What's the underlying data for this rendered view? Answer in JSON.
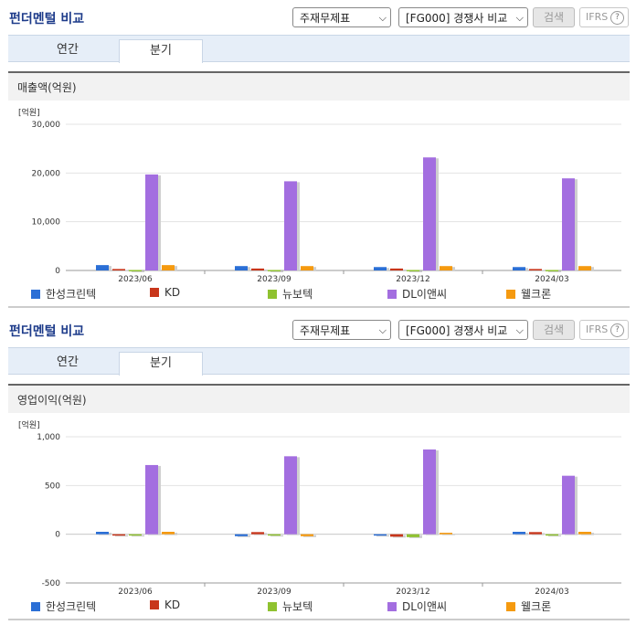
{
  "panels": [
    {
      "title": "펀더멘털 비교",
      "select_statement": "주재무제표",
      "select_compare": "[FG000] 경쟁사 비교",
      "search_label": "검색",
      "ifrs_label": "IFRS",
      "help_glyph": "?",
      "tabs": [
        "연간",
        "분기"
      ],
      "active_tab": 1,
      "metric_title": "매출액(억원)"
    },
    {
      "title": "펀더멘털 비교",
      "select_statement": "주재무제표",
      "select_compare": "[FG000] 경쟁사 비교",
      "search_label": "검색",
      "ifrs_label": "IFRS",
      "help_glyph": "?",
      "tabs": [
        "연간",
        "분기"
      ],
      "active_tab": 1,
      "metric_title": "영업이익(억원)"
    }
  ],
  "colors": {
    "한성크린텍": "#2b6fd6",
    "KD": "#c8361b",
    "뉴보텍": "#8fc230",
    "DL이앤씨": "#a36ee0",
    "웰크론": "#f59a10"
  },
  "chart_data": [
    {
      "type": "bar",
      "unit_label": "[억원]",
      "categories": [
        "2023/06",
        "2023/09",
        "2023/12",
        "2024/03"
      ],
      "ylim": [
        0,
        30000
      ],
      "yticks": [
        0,
        10000,
        20000,
        30000
      ],
      "ytick_labels": [
        "0",
        "10,000",
        "20,000",
        "30,000"
      ],
      "grid": true,
      "legend": "bottom",
      "series": [
        {
          "name": "한성크린텍",
          "values": [
            1100,
            900,
            700,
            700
          ]
        },
        {
          "name": "KD",
          "values": [
            300,
            400,
            400,
            300
          ]
        },
        {
          "name": "뉴보텍",
          "values": [
            100,
            100,
            100,
            100
          ]
        },
        {
          "name": "DL이앤씨",
          "values": [
            19700,
            18300,
            23200,
            18900
          ]
        },
        {
          "name": "웰크론",
          "values": [
            1100,
            900,
            900,
            900
          ]
        }
      ]
    },
    {
      "type": "bar",
      "unit_label": "[억원]",
      "categories": [
        "2023/06",
        "2023/09",
        "2023/12",
        "2024/03"
      ],
      "ylim": [
        -500,
        1000
      ],
      "yticks": [
        -500,
        0,
        500,
        1000
      ],
      "ytick_labels": [
        "-500",
        "0",
        "500",
        "1,000"
      ],
      "grid": true,
      "legend": "bottom",
      "series": [
        {
          "name": "한성크린텍",
          "values": [
            25,
            -20,
            -12,
            25
          ]
        },
        {
          "name": "KD",
          "values": [
            -10,
            22,
            -25,
            22
          ]
        },
        {
          "name": "뉴보텍",
          "values": [
            -10,
            -10,
            -30,
            -10
          ]
        },
        {
          "name": "DL이앤씨",
          "values": [
            710,
            800,
            870,
            600
          ]
        },
        {
          "name": "웰크론",
          "values": [
            25,
            -20,
            15,
            25
          ]
        }
      ]
    }
  ]
}
